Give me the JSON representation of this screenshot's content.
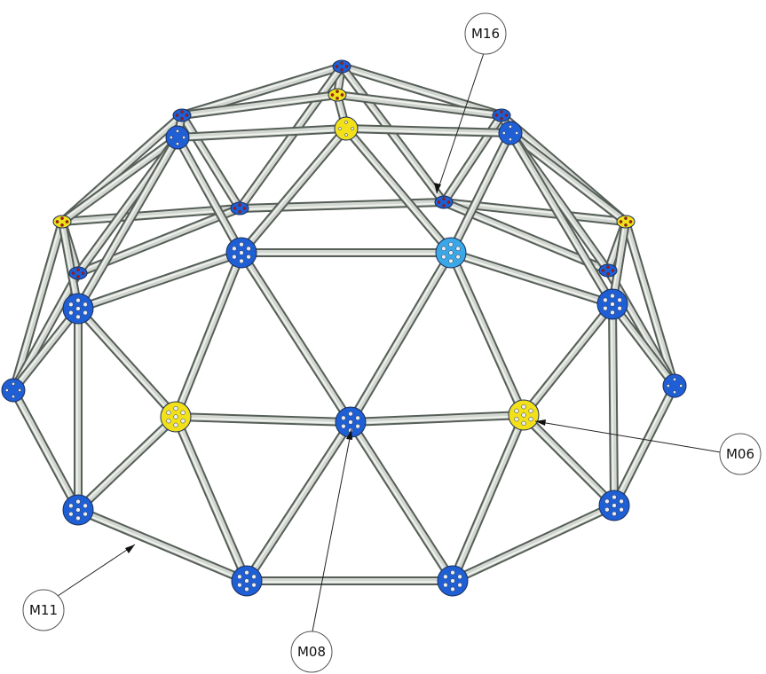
{
  "diagram": {
    "callouts": [
      {
        "id": "m16",
        "label": "M16"
      },
      {
        "id": "m06",
        "label": "M06"
      },
      {
        "id": "m11",
        "label": "M11"
      },
      {
        "id": "m08",
        "label": "M08"
      }
    ],
    "colors": {
      "hub_blue": "#1f5fd6",
      "hub_light_blue": "#3aa8e8",
      "hub_yellow": "#f2e11a",
      "strut": "#d3d7d1",
      "strut_edge": "#555e57",
      "detail_red": "#c01010"
    }
  }
}
